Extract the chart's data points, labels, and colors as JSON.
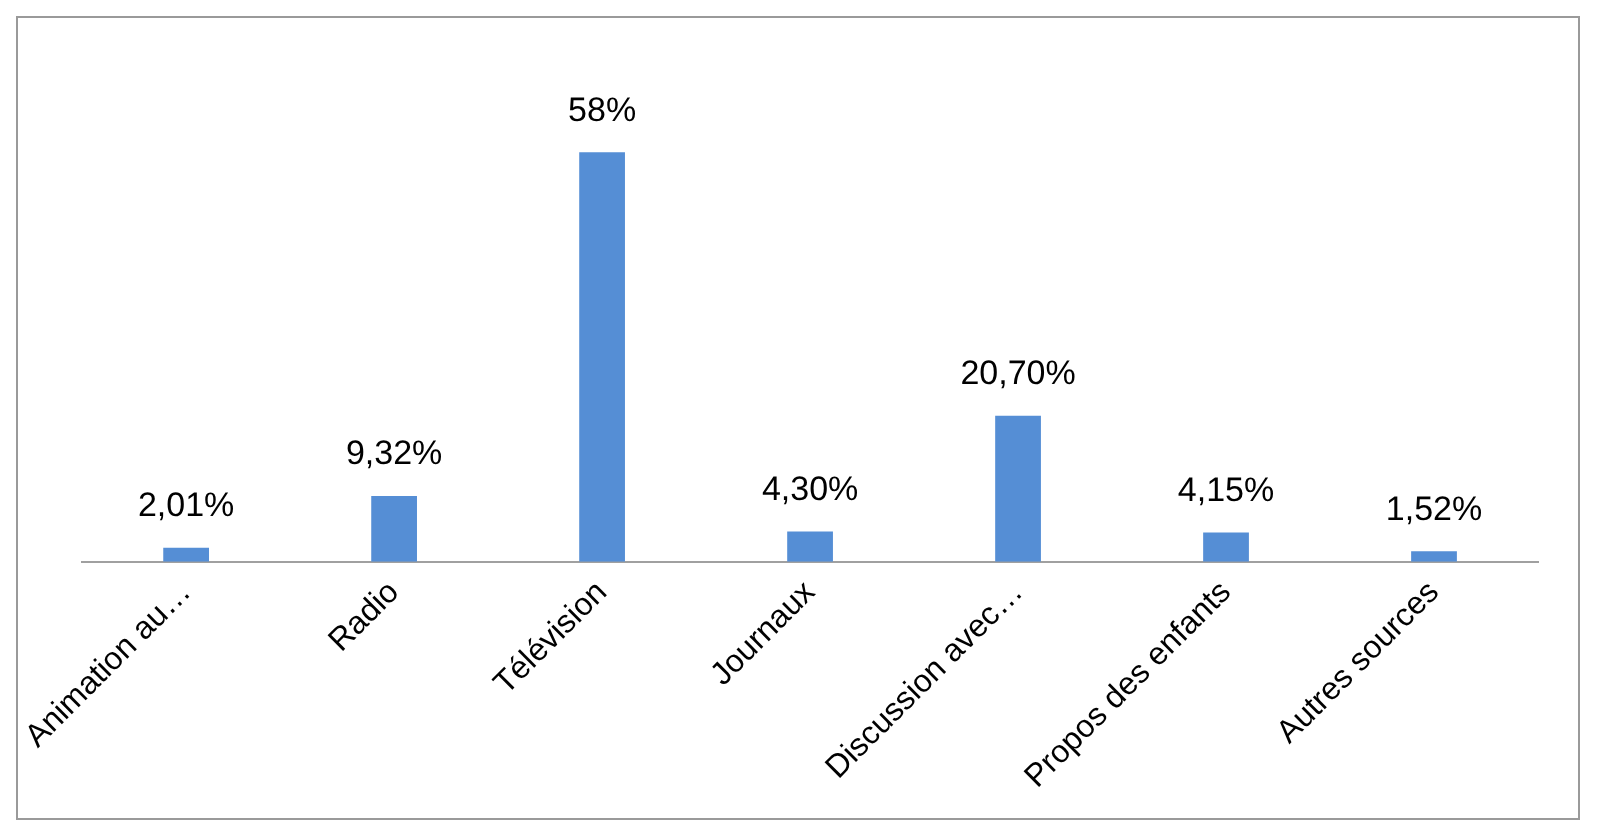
{
  "chart_data": {
    "type": "bar",
    "categories": [
      "Animation au…",
      "Radio",
      "Télévision",
      "Journaux",
      "Discussion avec…",
      "Propos des enfants",
      "Autres sources"
    ],
    "values": [
      2.01,
      9.32,
      58,
      4.3,
      20.7,
      4.15,
      1.52
    ],
    "value_labels": [
      "2,01%",
      "9,32%",
      "58%",
      "4,30%",
      "20,70%",
      "4,15%",
      "1,52%"
    ],
    "color": "#558ed5",
    "tick_labels": "x",
    "grid": false,
    "legend": false
  }
}
